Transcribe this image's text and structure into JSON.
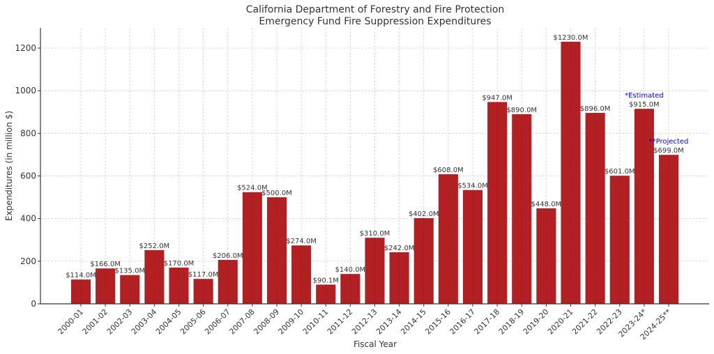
{
  "chart_data": {
    "type": "bar",
    "title": [
      "California Department of Forestry and Fire Protection",
      "Emergency Fund Fire Suppression Expenditures"
    ],
    "xlabel": "Fiscal Year",
    "ylabel": "Expenditures (in million $)",
    "ylim": [
      0,
      1290
    ],
    "yticks": [
      0,
      200,
      400,
      600,
      800,
      1000,
      1200
    ],
    "grid": true,
    "bar_color": "#b22024",
    "categories": [
      "2000-01",
      "2001-02",
      "2002-03",
      "2003-04",
      "2004-05",
      "2005-06",
      "2006-07",
      "2007-08",
      "2008-09",
      "2009-10",
      "2010-11",
      "2011-12",
      "2012-13",
      "2013-14",
      "2014-15",
      "2015-16",
      "2016-17",
      "2017-18",
      "2018-19",
      "2019-20",
      "2020-21",
      "2021-22",
      "2022-23",
      "2023-24*",
      "2024-25**"
    ],
    "values": [
      114,
      166,
      135,
      252,
      170,
      117,
      206,
      524,
      500,
      274,
      90.1,
      140,
      310,
      242,
      402,
      608,
      534,
      947,
      890,
      448,
      1230,
      896,
      601,
      915,
      699
    ],
    "data_labels": [
      "$114.0M",
      "$166.0M",
      "$135.0M",
      "$252.0M",
      "$170.0M",
      "$117.0M",
      "$206.0M",
      "$524.0M",
      "$500.0M",
      "$274.0M",
      "$90.1M",
      "$140.0M",
      "$310.0M",
      "$242.0M",
      "$402.0M",
      "$608.0M",
      "$534.0M",
      "$947.0M",
      "$890.0M",
      "$448.0M",
      "$1230.0M",
      "$896.0M",
      "$601.0M",
      "$915.0M",
      "$699.0M"
    ],
    "annotations": [
      {
        "category": "2023-24*",
        "text": "*Estimated",
        "color": "#0000ff"
      },
      {
        "category": "2024-25**",
        "text": "**Projected",
        "color": "#0000ff"
      }
    ]
  }
}
